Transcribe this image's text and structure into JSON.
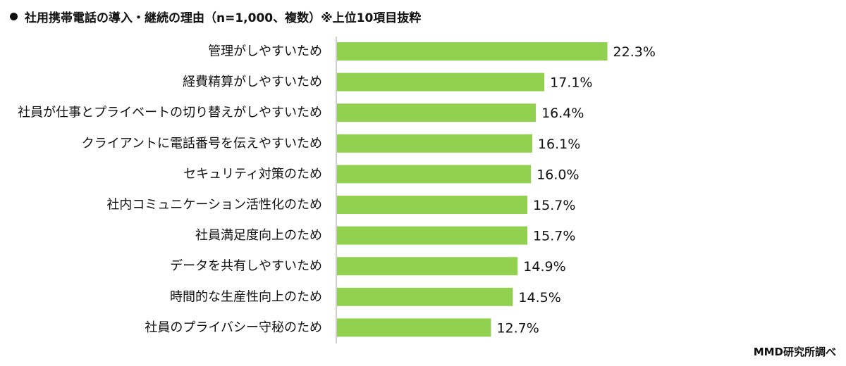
{
  "title": "社用携帯電話の導入・継続の理由（n=1,000、複数）※上位10項目抜粋",
  "source": "MMD研究所調べ",
  "colors": {
    "bar": "#92D050",
    "axis": "#BFBFBF",
    "text": "#111111"
  },
  "chart_data": {
    "type": "bar",
    "orientation": "horizontal",
    "title": "社用携帯電話の導入・継続の理由（n=1,000、複数）※上位10項目抜粋",
    "xlabel": "",
    "ylabel": "",
    "value_unit": "%",
    "xlim": [
      0,
      25
    ],
    "grid": false,
    "categories": [
      "管理がしやすいため",
      "経費精算がしやすいため",
      "社員が仕事とプライベートの切り替えがしやすいため",
      "クライアントに電話番号を伝えやすいため",
      "セキュリティ対策のため",
      "社内コミュニケーション活性化のため",
      "社員満足度向上のため",
      "データを共有しやすいため",
      "時間的な生産性向上のため",
      "社員のプライバシー守秘のため"
    ],
    "values": [
      22.3,
      17.1,
      16.4,
      16.1,
      16.0,
      15.7,
      15.7,
      14.9,
      14.5,
      12.7
    ],
    "value_labels": [
      "22.3%",
      "17.1%",
      "16.4%",
      "16.1%",
      "16.0%",
      "15.7%",
      "15.7%",
      "14.9%",
      "14.5%",
      "12.7%"
    ]
  }
}
